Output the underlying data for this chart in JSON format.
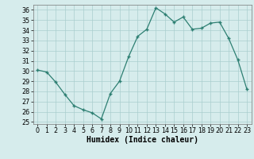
{
  "x": [
    0,
    1,
    2,
    3,
    4,
    5,
    6,
    7,
    8,
    9,
    10,
    11,
    12,
    13,
    14,
    15,
    16,
    17,
    18,
    19,
    20,
    21,
    22,
    23
  ],
  "y": [
    30.1,
    29.9,
    28.9,
    27.7,
    26.6,
    26.2,
    25.9,
    25.3,
    27.8,
    29.0,
    31.4,
    33.4,
    34.1,
    36.2,
    35.6,
    34.8,
    35.3,
    34.1,
    34.2,
    34.7,
    34.8,
    33.2,
    31.1,
    28.2
  ],
  "line_color": "#2d7f72",
  "marker_color": "#2d7f72",
  "bg_color": "#d6ecec",
  "grid_color": "#aacece",
  "xlabel": "Humidex (Indice chaleur)",
  "ylim": [
    24.8,
    36.5
  ],
  "xlim": [
    -0.5,
    23.5
  ],
  "yticks": [
    25,
    26,
    27,
    28,
    29,
    30,
    31,
    32,
    33,
    34,
    35,
    36
  ],
  "xticks": [
    0,
    1,
    2,
    3,
    4,
    5,
    6,
    7,
    8,
    9,
    10,
    11,
    12,
    13,
    14,
    15,
    16,
    17,
    18,
    19,
    20,
    21,
    22,
    23
  ],
  "tick_fontsize": 5.8,
  "label_fontsize": 7.0
}
